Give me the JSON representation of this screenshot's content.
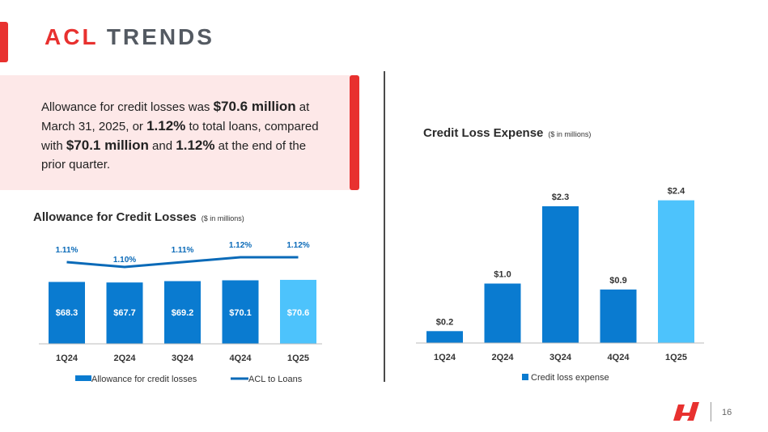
{
  "slide": {
    "title_accent": "ACL",
    "title_rest": "TRENDS",
    "page_number": "16"
  },
  "callout": {
    "t1": "Allowance for credit losses was ",
    "b1": "$70.6 million",
    "t2": " at March 31, 2025, or ",
    "b2": "1.12%",
    "t3": " to total loans, compared with ",
    "b3": "$70.1 million",
    "t4": " and ",
    "b4": "1.12%",
    "t5": " at the end of the prior quarter."
  },
  "colors": {
    "accent": "#e8312f",
    "bar": "#0a7bd0",
    "bar_highlight": "#4dc3fc",
    "line": "#0a6ab8"
  },
  "chart_data": [
    {
      "type": "bar",
      "title": "Allowance for Credit Losses",
      "subtitle": "($ in millions)",
      "categories": [
        "1Q24",
        "2Q24",
        "3Q24",
        "4Q24",
        "1Q25"
      ],
      "series": [
        {
          "name": "Allowance for credit losses",
          "type": "bar",
          "values": [
            68.3,
            67.7,
            69.2,
            70.1,
            70.6
          ],
          "labels": [
            "$68.3",
            "$67.7",
            "$69.2",
            "$70.1",
            "$70.6"
          ]
        },
        {
          "name": "ACL to Loans",
          "type": "line",
          "values": [
            1.11,
            1.1,
            1.11,
            1.12,
            1.12
          ],
          "labels": [
            "1.11%",
            "1.10%",
            "1.11%",
            "1.12%",
            "1.12%"
          ]
        }
      ],
      "legend": "bottom"
    },
    {
      "type": "bar",
      "title": "Credit Loss Expense",
      "subtitle": "($ in millions)",
      "categories": [
        "1Q24",
        "2Q24",
        "3Q24",
        "4Q24",
        "1Q25"
      ],
      "series": [
        {
          "name": "Credit loss expense",
          "values": [
            0.2,
            1.0,
            2.3,
            0.9,
            2.4
          ],
          "labels": [
            "$0.2",
            "$1.0",
            "$2.3",
            "$0.9",
            "$2.4"
          ]
        }
      ],
      "legend": "bottom"
    }
  ]
}
